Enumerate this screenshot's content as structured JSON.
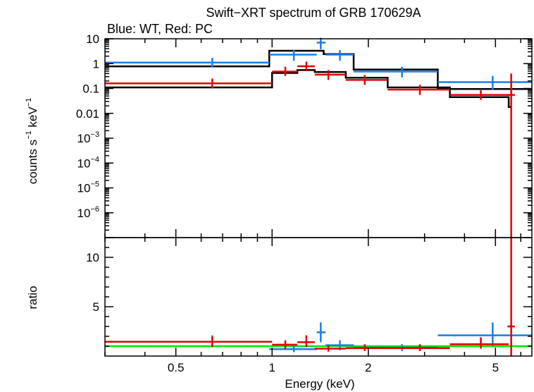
{
  "chart_data": {
    "type": "scatter",
    "title": "Swift−XRT spectrum of GRB 170629A",
    "subtitle": "Blue: WT, Red: PC",
    "xlabel": "Energy (keV)",
    "x_scale": "log",
    "xlim": [
      0.3,
      6.5
    ],
    "x_ticks": [
      {
        "value": 0.5,
        "label": "0.5"
      },
      {
        "value": 1,
        "label": "1"
      },
      {
        "value": 2,
        "label": "2"
      },
      {
        "value": 5,
        "label": "5"
      }
    ],
    "colors": {
      "wt": "#1a7ee6",
      "pc": "#e60000",
      "model": "#000000",
      "unity": "#00e600"
    },
    "top_panel": {
      "ylabel": "counts s",
      "ylabel_exp1": "−1",
      "ylabel_mid": " keV",
      "ylabel_exp2": "−1",
      "y_scale": "log",
      "ylim": [
        1e-07,
        10
      ],
      "y_ticks": [
        {
          "value": 10,
          "base": "10",
          "exp": ""
        },
        {
          "value": 1,
          "base": "1",
          "exp": ""
        },
        {
          "value": 0.1,
          "base": "0.1",
          "exp": ""
        },
        {
          "value": 0.01,
          "base": "0.01",
          "exp": ""
        },
        {
          "value": 0.001,
          "base": "10",
          "exp": "−3"
        },
        {
          "value": 0.0001,
          "base": "10",
          "exp": "−4"
        },
        {
          "value": 1e-05,
          "base": "10",
          "exp": "−5"
        },
        {
          "value": 1e-06,
          "base": "10",
          "exp": "−6"
        }
      ],
      "series": [
        {
          "key": "wt",
          "points": [
            {
              "x": 0.65,
              "xlo": 0.3,
              "xhi": 0.98,
              "y": 1.1,
              "ylo": 0.7,
              "yhi": 1.7
            },
            {
              "x": 1.17,
              "xlo": 0.98,
              "xhi": 1.38,
              "y": 2.3,
              "ylo": 1.3,
              "yhi": 3.6
            },
            {
              "x": 1.42,
              "xlo": 1.38,
              "xhi": 1.47,
              "y": 7.0,
              "ylo": 3.8,
              "yhi": 11
            },
            {
              "x": 1.63,
              "xlo": 1.47,
              "xhi": 1.8,
              "y": 2.3,
              "ylo": 1.3,
              "yhi": 3.5
            },
            {
              "x": 2.55,
              "xlo": 1.8,
              "xhi": 3.3,
              "y": 0.48,
              "ylo": 0.28,
              "yhi": 0.75
            },
            {
              "x": 4.9,
              "xlo": 3.3,
              "xhi": 6.5,
              "y": 0.18,
              "ylo": 0.09,
              "yhi": 0.32
            }
          ]
        },
        {
          "key": "pc",
          "points": [
            {
              "x": 0.65,
              "xlo": 0.3,
              "xhi": 1.0,
              "y": 0.16,
              "ylo": 0.1,
              "yhi": 0.25
            },
            {
              "x": 1.1,
              "xlo": 1.0,
              "xhi": 1.2,
              "y": 0.48,
              "ylo": 0.32,
              "yhi": 0.75
            },
            {
              "x": 1.28,
              "xlo": 1.2,
              "xhi": 1.36,
              "y": 0.78,
              "ylo": 0.5,
              "yhi": 1.2
            },
            {
              "x": 1.5,
              "xlo": 1.36,
              "xhi": 1.7,
              "y": 0.36,
              "ylo": 0.22,
              "yhi": 0.55
            },
            {
              "x": 1.95,
              "xlo": 1.7,
              "xhi": 2.3,
              "y": 0.22,
              "ylo": 0.14,
              "yhi": 0.35
            },
            {
              "x": 2.9,
              "xlo": 2.3,
              "xhi": 3.6,
              "y": 0.09,
              "ylo": 0.055,
              "yhi": 0.14
            },
            {
              "x": 4.5,
              "xlo": 3.6,
              "xhi": 5.5,
              "y": 0.055,
              "ylo": 0.035,
              "yhi": 0.085
            },
            {
              "x": 5.6,
              "xlo": 5.45,
              "xhi": 5.75,
              "y": 0.055,
              "ylo": 1e-07,
              "yhi": 0.4
            }
          ]
        }
      ],
      "models": [
        {
          "key": "wt_model",
          "steps": [
            {
              "xlo": 0.3,
              "xhi": 0.98,
              "y": 0.78
            },
            {
              "xlo": 0.98,
              "xhi": 1.45,
              "y": 3.3
            },
            {
              "xlo": 1.45,
              "xhi": 1.8,
              "y": 2.4
            },
            {
              "xlo": 1.8,
              "xhi": 3.3,
              "y": 0.58
            },
            {
              "xlo": 3.3,
              "xhi": 6.5,
              "y": 0.095
            }
          ]
        },
        {
          "key": "pc_model",
          "steps": [
            {
              "xlo": 0.3,
              "xhi": 1.0,
              "y": 0.11
            },
            {
              "xlo": 1.0,
              "xhi": 1.2,
              "y": 0.42
            },
            {
              "xlo": 1.2,
              "xhi": 1.36,
              "y": 0.55
            },
            {
              "xlo": 1.36,
              "xhi": 1.7,
              "y": 0.46
            },
            {
              "xlo": 1.7,
              "xhi": 2.3,
              "y": 0.27
            },
            {
              "xlo": 2.3,
              "xhi": 3.6,
              "y": 0.11
            },
            {
              "xlo": 3.6,
              "xhi": 5.5,
              "y": 0.045
            },
            {
              "xlo": 5.5,
              "xhi": 5.6,
              "y": 0.018
            }
          ]
        }
      ]
    },
    "bottom_panel": {
      "ylabel": "ratio",
      "y_scale": "linear",
      "ylim": [
        0,
        12
      ],
      "y_ticks": [
        {
          "value": 5,
          "label": "5"
        },
        {
          "value": 10,
          "label": "10"
        }
      ],
      "reference_line": 1,
      "series": [
        {
          "key": "wt",
          "points": [
            {
              "x": 0.65,
              "xlo": 0.3,
              "xhi": 0.98,
              "y": 1.45,
              "ylo": 0.9,
              "yhi": 2.1
            },
            {
              "x": 1.17,
              "xlo": 0.98,
              "xhi": 1.38,
              "y": 0.7,
              "ylo": 0.4,
              "yhi": 1.1
            },
            {
              "x": 1.42,
              "xlo": 1.38,
              "xhi": 1.47,
              "y": 2.4,
              "ylo": 1.4,
              "yhi": 3.4
            },
            {
              "x": 1.63,
              "xlo": 1.47,
              "xhi": 1.8,
              "y": 1.1,
              "ylo": 0.6,
              "yhi": 1.6
            },
            {
              "x": 2.55,
              "xlo": 1.8,
              "xhi": 3.3,
              "y": 0.85,
              "ylo": 0.5,
              "yhi": 1.2
            },
            {
              "x": 4.9,
              "xlo": 3.3,
              "xhi": 6.5,
              "y": 2.1,
              "ylo": 1.0,
              "yhi": 3.4
            }
          ]
        },
        {
          "key": "pc",
          "points": [
            {
              "x": 0.65,
              "xlo": 0.3,
              "xhi": 1.0,
              "y": 1.45,
              "ylo": 0.9,
              "yhi": 2.0
            },
            {
              "x": 1.1,
              "xlo": 1.0,
              "xhi": 1.2,
              "y": 1.15,
              "ylo": 0.7,
              "yhi": 1.6
            },
            {
              "x": 1.28,
              "xlo": 1.2,
              "xhi": 1.36,
              "y": 1.4,
              "ylo": 0.9,
              "yhi": 2.1
            },
            {
              "x": 1.5,
              "xlo": 1.36,
              "xhi": 1.7,
              "y": 0.75,
              "ylo": 0.45,
              "yhi": 1.1
            },
            {
              "x": 1.95,
              "xlo": 1.7,
              "xhi": 2.3,
              "y": 0.8,
              "ylo": 0.5,
              "yhi": 1.2
            },
            {
              "x": 2.9,
              "xlo": 2.3,
              "xhi": 3.6,
              "y": 0.8,
              "ylo": 0.5,
              "yhi": 1.2
            },
            {
              "x": 4.5,
              "xlo": 3.6,
              "xhi": 5.5,
              "y": 1.2,
              "ylo": 0.75,
              "yhi": 1.9
            },
            {
              "x": 5.6,
              "xlo": 5.45,
              "xhi": 5.75,
              "y": 3.0,
              "ylo": 0,
              "yhi": 12
            }
          ]
        }
      ]
    }
  }
}
